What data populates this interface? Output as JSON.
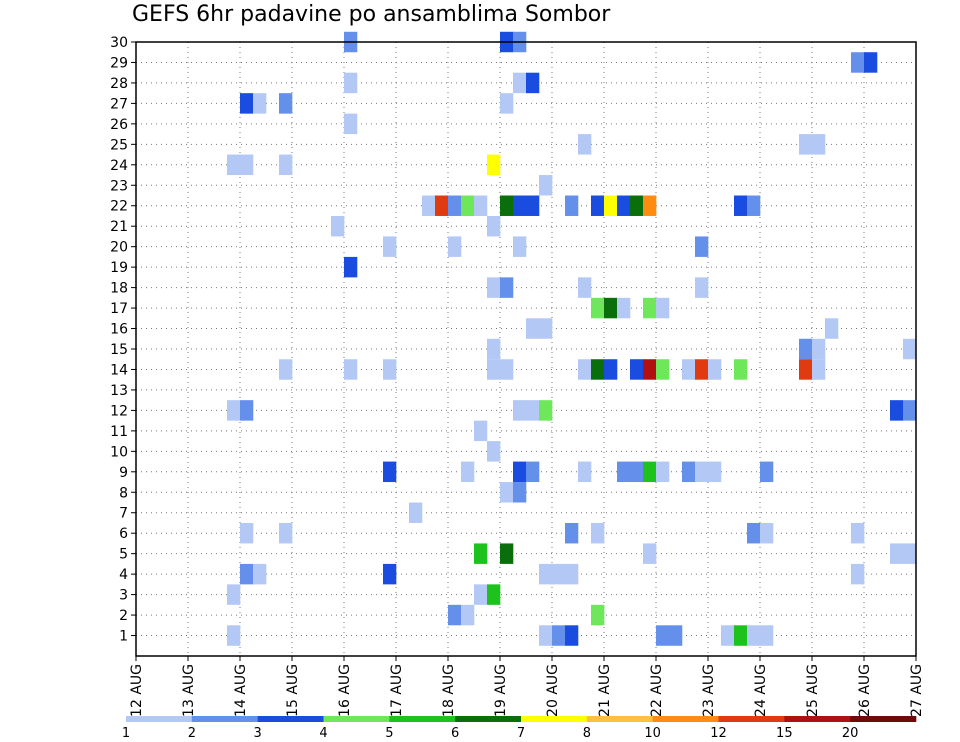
{
  "chart_data": {
    "type": "heatmap",
    "title": "GEFS 6hr padavine po ansamblima Sombor",
    "xlabel": "",
    "ylabel": "",
    "x_ticks": [
      "12 AUG",
      "13 AUG",
      "14 AUG",
      "15 AUG",
      "16 AUG",
      "17 AUG",
      "18 AUG",
      "19 AUG",
      "20 AUG",
      "21 AUG",
      "22 AUG",
      "23 AUG",
      "24 AUG",
      "25 AUG",
      "26 AUG",
      "27 AUG"
    ],
    "y_ticks": [
      "1",
      "2",
      "3",
      "4",
      "5",
      "6",
      "7",
      "8",
      "9",
      "10",
      "11",
      "12",
      "13",
      "14",
      "15",
      "16",
      "17",
      "18",
      "19",
      "20",
      "21",
      "22",
      "23",
      "24",
      "25",
      "26",
      "27",
      "28",
      "29",
      "30"
    ],
    "ylim": [
      0,
      30
    ],
    "grid": true,
    "legend_placement": "bottom",
    "color_scale": {
      "levels": [
        "1",
        "2",
        "3",
        "4",
        "5",
        "6",
        "7",
        "8",
        "10",
        "12",
        "15",
        "20"
      ],
      "colors": [
        "#b4c8f5",
        "#6490ec",
        "#1a4ce0",
        "#6ee85a",
        "#1dc21d",
        "#0a6e0a",
        "#ffff00",
        "#ffc040",
        "#ff8c10",
        "#e03a10",
        "#b01010",
        "#6e0a0a"
      ]
    },
    "cells": [
      {
        "member": 30,
        "time": "16 AUG 00",
        "cls": 1
      },
      {
        "member": 30,
        "time": "19 AUG 00",
        "cls": 2
      },
      {
        "member": 30,
        "time": "19 AUG 06",
        "cls": 1
      },
      {
        "member": 29,
        "time": "25 AUG 18",
        "cls": 1
      },
      {
        "member": 29,
        "time": "26 AUG 00",
        "cls": 2
      },
      {
        "member": 28,
        "time": "16 AUG 00",
        "cls": 0
      },
      {
        "member": 28,
        "time": "19 AUG 06",
        "cls": 0
      },
      {
        "member": 28,
        "time": "19 AUG 12",
        "cls": 2
      },
      {
        "member": 27,
        "time": "14 AUG 00",
        "cls": 2
      },
      {
        "member": 27,
        "time": "14 AUG 06",
        "cls": 0
      },
      {
        "member": 27,
        "time": "14 AUG 18",
        "cls": 1
      },
      {
        "member": 27,
        "time": "19 AUG 00",
        "cls": 0
      },
      {
        "member": 26,
        "time": "16 AUG 00",
        "cls": 0
      },
      {
        "member": 25,
        "time": "20 AUG 12",
        "cls": 0
      },
      {
        "member": 25,
        "time": "24 AUG 18",
        "cls": 0
      },
      {
        "member": 25,
        "time": "25 AUG 00",
        "cls": 0
      },
      {
        "member": 24,
        "time": "13 AUG 18",
        "cls": 0
      },
      {
        "member": 24,
        "time": "14 AUG 00",
        "cls": 0
      },
      {
        "member": 24,
        "time": "14 AUG 18",
        "cls": 0
      },
      {
        "member": 24,
        "time": "18 AUG 18",
        "cls": 6
      },
      {
        "member": 23,
        "time": "19 AUG 18",
        "cls": 0
      },
      {
        "member": 22,
        "time": "17 AUG 12",
        "cls": 0
      },
      {
        "member": 22,
        "time": "17 AUG 18",
        "cls": 9
      },
      {
        "member": 22,
        "time": "18 AUG 00",
        "cls": 1
      },
      {
        "member": 22,
        "time": "18 AUG 06",
        "cls": 3
      },
      {
        "member": 22,
        "time": "18 AUG 12",
        "cls": 0
      },
      {
        "member": 22,
        "time": "19 AUG 00",
        "cls": 5
      },
      {
        "member": 22,
        "time": "19 AUG 06",
        "cls": 2
      },
      {
        "member": 22,
        "time": "19 AUG 12",
        "cls": 2
      },
      {
        "member": 22,
        "time": "20 AUG 06",
        "cls": 1
      },
      {
        "member": 22,
        "time": "20 AUG 18",
        "cls": 2
      },
      {
        "member": 22,
        "time": "21 AUG 00",
        "cls": 6
      },
      {
        "member": 22,
        "time": "21 AUG 06",
        "cls": 2
      },
      {
        "member": 22,
        "time": "21 AUG 12",
        "cls": 5
      },
      {
        "member": 22,
        "time": "21 AUG 18",
        "cls": 8
      },
      {
        "member": 22,
        "time": "23 AUG 12",
        "cls": 2
      },
      {
        "member": 22,
        "time": "23 AUG 18",
        "cls": 1
      },
      {
        "member": 21,
        "time": "15 AUG 18",
        "cls": 0
      },
      {
        "member": 21,
        "time": "18 AUG 18",
        "cls": 0
      },
      {
        "member": 20,
        "time": "16 AUG 18",
        "cls": 0
      },
      {
        "member": 20,
        "time": "18 AUG 00",
        "cls": 0
      },
      {
        "member": 20,
        "time": "19 AUG 06",
        "cls": 0
      },
      {
        "member": 20,
        "time": "22 AUG 18",
        "cls": 1
      },
      {
        "member": 19,
        "time": "16 AUG 00",
        "cls": 2
      },
      {
        "member": 18,
        "time": "18 AUG 18",
        "cls": 0
      },
      {
        "member": 18,
        "time": "19 AUG 00",
        "cls": 1
      },
      {
        "member": 18,
        "time": "20 AUG 12",
        "cls": 0
      },
      {
        "member": 18,
        "time": "22 AUG 18",
        "cls": 0
      },
      {
        "member": 17,
        "time": "20 AUG 18",
        "cls": 3
      },
      {
        "member": 17,
        "time": "21 AUG 00",
        "cls": 5
      },
      {
        "member": 17,
        "time": "21 AUG 06",
        "cls": 0
      },
      {
        "member": 17,
        "time": "21 AUG 18",
        "cls": 3
      },
      {
        "member": 17,
        "time": "22 AUG 00",
        "cls": 0
      },
      {
        "member": 16,
        "time": "19 AUG 12",
        "cls": 0
      },
      {
        "member": 16,
        "time": "19 AUG 18",
        "cls": 0
      },
      {
        "member": 16,
        "time": "25 AUG 06",
        "cls": 0
      },
      {
        "member": 15,
        "time": "18 AUG 18",
        "cls": 0
      },
      {
        "member": 15,
        "time": "24 AUG 18",
        "cls": 1
      },
      {
        "member": 15,
        "time": "25 AUG 00",
        "cls": 0
      },
      {
        "member": 15,
        "time": "26 AUG 18",
        "cls": 0
      },
      {
        "member": 14,
        "time": "14 AUG 18",
        "cls": 0
      },
      {
        "member": 14,
        "time": "16 AUG 00",
        "cls": 0
      },
      {
        "member": 14,
        "time": "16 AUG 18",
        "cls": 0
      },
      {
        "member": 14,
        "time": "18 AUG 18",
        "cls": 0
      },
      {
        "member": 14,
        "time": "19 AUG 00",
        "cls": 0
      },
      {
        "member": 14,
        "time": "20 AUG 12",
        "cls": 0
      },
      {
        "member": 14,
        "time": "20 AUG 18",
        "cls": 5
      },
      {
        "member": 14,
        "time": "21 AUG 00",
        "cls": 2
      },
      {
        "member": 14,
        "time": "21 AUG 12",
        "cls": 2
      },
      {
        "member": 14,
        "time": "21 AUG 18",
        "cls": 10
      },
      {
        "member": 14,
        "time": "22 AUG 00",
        "cls": 3
      },
      {
        "member": 14,
        "time": "22 AUG 12",
        "cls": 0
      },
      {
        "member": 14,
        "time": "22 AUG 18",
        "cls": 9
      },
      {
        "member": 14,
        "time": "23 AUG 00",
        "cls": 0
      },
      {
        "member": 14,
        "time": "23 AUG 12",
        "cls": 3
      },
      {
        "member": 14,
        "time": "24 AUG 18",
        "cls": 9
      },
      {
        "member": 14,
        "time": "25 AUG 00",
        "cls": 0
      },
      {
        "member": 12,
        "time": "13 AUG 18",
        "cls": 0
      },
      {
        "member": 12,
        "time": "14 AUG 00",
        "cls": 1
      },
      {
        "member": 12,
        "time": "19 AUG 06",
        "cls": 0
      },
      {
        "member": 12,
        "time": "19 AUG 12",
        "cls": 0
      },
      {
        "member": 12,
        "time": "19 AUG 18",
        "cls": 3
      },
      {
        "member": 12,
        "time": "26 AUG 12",
        "cls": 2
      },
      {
        "member": 12,
        "time": "26 AUG 18",
        "cls": 1
      },
      {
        "member": 11,
        "time": "18 AUG 12",
        "cls": 0
      },
      {
        "member": 10,
        "time": "18 AUG 18",
        "cls": 0
      },
      {
        "member": 9,
        "time": "16 AUG 18",
        "cls": 2
      },
      {
        "member": 9,
        "time": "18 AUG 06",
        "cls": 0
      },
      {
        "member": 9,
        "time": "19 AUG 06",
        "cls": 2
      },
      {
        "member": 9,
        "time": "19 AUG 12",
        "cls": 1
      },
      {
        "member": 9,
        "time": "20 AUG 12",
        "cls": 0
      },
      {
        "member": 9,
        "time": "21 AUG 06",
        "cls": 1
      },
      {
        "member": 9,
        "time": "21 AUG 12",
        "cls": 1
      },
      {
        "member": 9,
        "time": "21 AUG 18",
        "cls": 4
      },
      {
        "member": 9,
        "time": "22 AUG 00",
        "cls": 0
      },
      {
        "member": 9,
        "time": "22 AUG 12",
        "cls": 1
      },
      {
        "member": 9,
        "time": "22 AUG 18",
        "cls": 0
      },
      {
        "member": 9,
        "time": "23 AUG 00",
        "cls": 0
      },
      {
        "member": 9,
        "time": "24 AUG 00",
        "cls": 1
      },
      {
        "member": 8,
        "time": "19 AUG 00",
        "cls": 0
      },
      {
        "member": 8,
        "time": "19 AUG 06",
        "cls": 1
      },
      {
        "member": 7,
        "time": "17 AUG 06",
        "cls": 0
      },
      {
        "member": 6,
        "time": "14 AUG 00",
        "cls": 0
      },
      {
        "member": 6,
        "time": "14 AUG 18",
        "cls": 0
      },
      {
        "member": 6,
        "time": "20 AUG 06",
        "cls": 1
      },
      {
        "member": 6,
        "time": "20 AUG 18",
        "cls": 0
      },
      {
        "member": 6,
        "time": "23 AUG 18",
        "cls": 1
      },
      {
        "member": 6,
        "time": "24 AUG 00",
        "cls": 0
      },
      {
        "member": 6,
        "time": "25 AUG 18",
        "cls": 0
      },
      {
        "member": 5,
        "time": "18 AUG 12",
        "cls": 4
      },
      {
        "member": 5,
        "time": "19 AUG 00",
        "cls": 5
      },
      {
        "member": 5,
        "time": "21 AUG 18",
        "cls": 0
      },
      {
        "member": 5,
        "time": "26 AUG 12",
        "cls": 0
      },
      {
        "member": 5,
        "time": "26 AUG 18",
        "cls": 0
      },
      {
        "member": 4,
        "time": "14 AUG 00",
        "cls": 1
      },
      {
        "member": 4,
        "time": "14 AUG 06",
        "cls": 0
      },
      {
        "member": 4,
        "time": "16 AUG 18",
        "cls": 2
      },
      {
        "member": 4,
        "time": "19 AUG 18",
        "cls": 0
      },
      {
        "member": 4,
        "time": "20 AUG 00",
        "cls": 0
      },
      {
        "member": 4,
        "time": "20 AUG 06",
        "cls": 0
      },
      {
        "member": 4,
        "time": "25 AUG 18",
        "cls": 0
      },
      {
        "member": 3,
        "time": "13 AUG 18",
        "cls": 0
      },
      {
        "member": 3,
        "time": "18 AUG 12",
        "cls": 0
      },
      {
        "member": 3,
        "time": "18 AUG 18",
        "cls": 4
      },
      {
        "member": 2,
        "time": "18 AUG 00",
        "cls": 1
      },
      {
        "member": 2,
        "time": "18 AUG 06",
        "cls": 0
      },
      {
        "member": 2,
        "time": "20 AUG 18",
        "cls": 3
      },
      {
        "member": 1,
        "time": "13 AUG 18",
        "cls": 0
      },
      {
        "member": 1,
        "time": "19 AUG 18",
        "cls": 0
      },
      {
        "member": 1,
        "time": "20 AUG 00",
        "cls": 1
      },
      {
        "member": 1,
        "time": "20 AUG 06",
        "cls": 2
      },
      {
        "member": 1,
        "time": "22 AUG 00",
        "cls": 1
      },
      {
        "member": 1,
        "time": "22 AUG 06",
        "cls": 1
      },
      {
        "member": 1,
        "time": "23 AUG 06",
        "cls": 0
      },
      {
        "member": 1,
        "time": "23 AUG 12",
        "cls": 4
      },
      {
        "member": 1,
        "time": "23 AUG 18",
        "cls": 0
      },
      {
        "member": 1,
        "time": "24 AUG 00",
        "cls": 0
      }
    ]
  }
}
